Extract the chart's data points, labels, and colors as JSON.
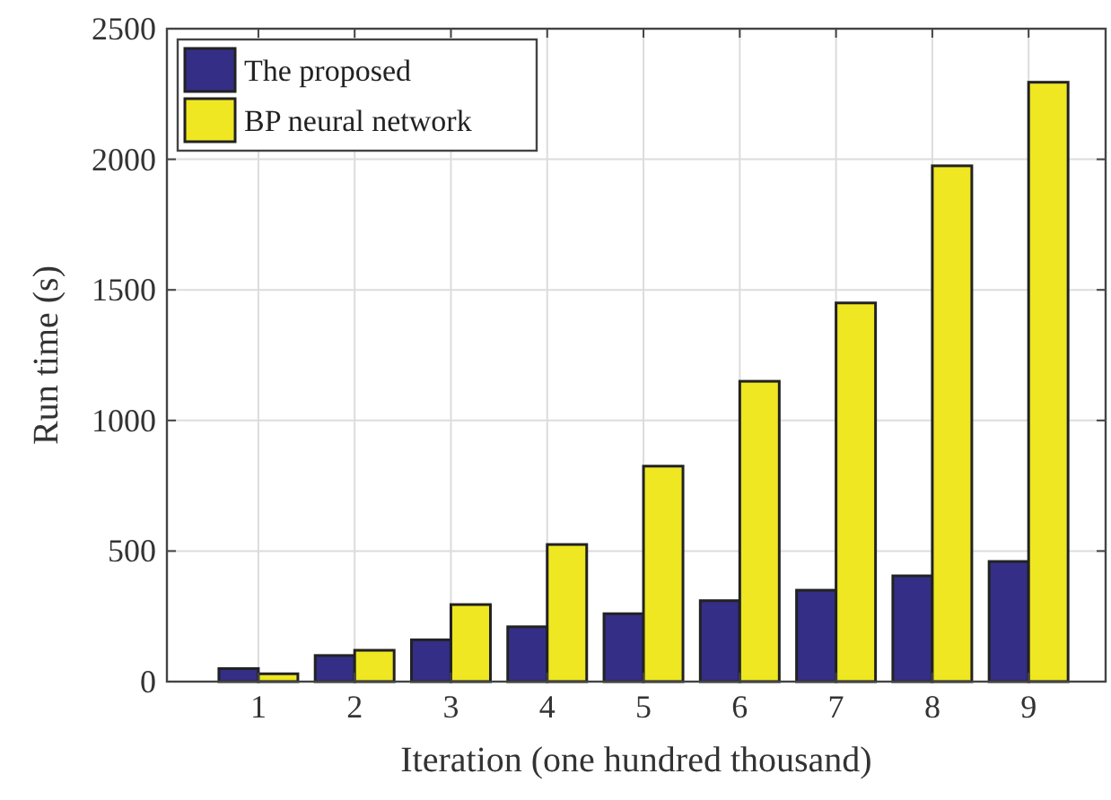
{
  "chart_data": {
    "type": "bar",
    "xlabel": "Iteration (one hundred thousand)",
    "ylabel": "Run time (s)",
    "categories": [
      "1",
      "2",
      "3",
      "4",
      "5",
      "6",
      "7",
      "8",
      "9"
    ],
    "series": [
      {
        "name": "The proposed",
        "color": "#342e86",
        "values": [
          50,
          100,
          160,
          210,
          260,
          310,
          350,
          405,
          460
        ]
      },
      {
        "name": "BP neural network",
        "color": "#eee722",
        "values": [
          30,
          120,
          295,
          525,
          825,
          1150,
          1450,
          1975,
          2295
        ]
      }
    ],
    "ylim": [
      0,
      2500
    ],
    "yticks": [
      0,
      500,
      1000,
      1500,
      2000,
      2500
    ],
    "grid": true,
    "legend": "top left"
  }
}
